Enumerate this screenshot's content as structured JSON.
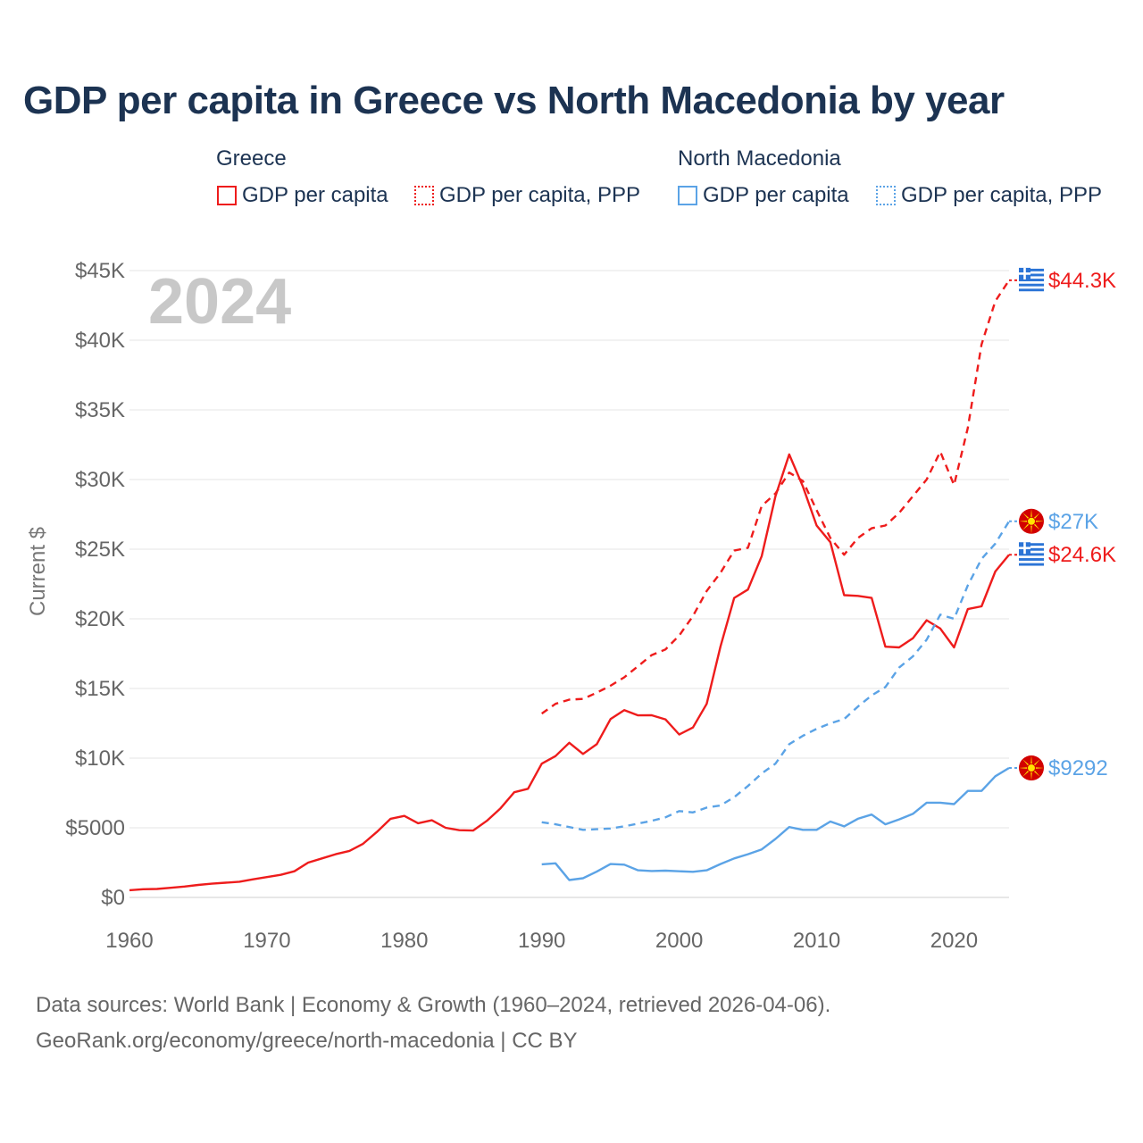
{
  "title": "GDP per capita in Greece vs North Macedonia by year",
  "legend": {
    "groups": [
      {
        "name": "Greece",
        "items": [
          "GDP per capita",
          "GDP per capita, PPP"
        ]
      },
      {
        "name": "North Macedonia",
        "items": [
          "GDP per capita",
          "GDP per capita, PPP"
        ]
      }
    ]
  },
  "source": {
    "line1": "Data sources: World Bank | Economy & Growth (1960–2024, retrieved 2026-04-06).",
    "line2": "GeoRank.org/economy/greece/north-macedonia | CC BY"
  },
  "colors": {
    "greece": "#ee1c1c",
    "north_macedonia": "#5ba3e6"
  },
  "chart_data": {
    "type": "line",
    "title": "GDP per capita in Greece vs North Macedonia by year",
    "year_label": "2024",
    "xlabel": "",
    "ylabel": "Current $",
    "xlim": [
      1960,
      2024
    ],
    "ylim": [
      0,
      45000
    ],
    "x_ticks": [
      1960,
      1970,
      1980,
      1990,
      2000,
      2010,
      2020
    ],
    "y_ticks": [
      0,
      5000,
      10000,
      15000,
      20000,
      25000,
      30000,
      35000,
      40000,
      45000
    ],
    "y_tick_labels": [
      "$0",
      "$5000",
      "$10K",
      "$15K",
      "$20K",
      "$25K",
      "$30K",
      "$35K",
      "$40K",
      "$45K"
    ],
    "grid": true,
    "series": [
      {
        "name": "Greece GDP per capita",
        "country": "Greece",
        "style": "solid",
        "color": "#ee1c1c",
        "end_label": "$24.6K",
        "x": [
          1960,
          1961,
          1962,
          1963,
          1964,
          1965,
          1966,
          1967,
          1968,
          1969,
          1970,
          1971,
          1972,
          1973,
          1974,
          1975,
          1976,
          1977,
          1978,
          1979,
          1980,
          1981,
          1982,
          1983,
          1984,
          1985,
          1986,
          1987,
          1988,
          1989,
          1990,
          1991,
          1992,
          1993,
          1994,
          1995,
          1996,
          1997,
          1998,
          1999,
          2000,
          2001,
          2002,
          2003,
          2004,
          2005,
          2006,
          2007,
          2008,
          2009,
          2010,
          2011,
          2012,
          2013,
          2014,
          2015,
          2016,
          2017,
          2018,
          2019,
          2020,
          2021,
          2022,
          2023,
          2024
        ],
        "values": [
          520,
          590,
          610,
          690,
          780,
          900,
          990,
          1060,
          1130,
          1300,
          1460,
          1620,
          1880,
          2500,
          2800,
          3100,
          3340,
          3850,
          4700,
          5650,
          5850,
          5330,
          5540,
          5000,
          4830,
          4800,
          5500,
          6400,
          7550,
          7800,
          9600,
          10150,
          11100,
          10300,
          11000,
          12800,
          13450,
          13070,
          13080,
          12780,
          11700,
          12200,
          13900,
          18000,
          21500,
          22100,
          24500,
          28800,
          31800,
          29500,
          26700,
          25500,
          21700,
          21650,
          21500,
          18000,
          17950,
          18600,
          19900,
          19300,
          17950,
          20700,
          20900,
          23400,
          24600
        ]
      },
      {
        "name": "Greece GDP per capita, PPP",
        "country": "Greece",
        "style": "dashed",
        "color": "#ee1c1c",
        "end_label": "$44.3K",
        "x": [
          1990,
          1991,
          1992,
          1993,
          1994,
          1995,
          1996,
          1997,
          1998,
          1999,
          2000,
          2001,
          2002,
          2003,
          2004,
          2005,
          2006,
          2007,
          2008,
          2009,
          2010,
          2011,
          2012,
          2013,
          2014,
          2015,
          2016,
          2017,
          2018,
          2019,
          2020,
          2021,
          2022,
          2023,
          2024
        ],
        "values": [
          13200,
          13900,
          14200,
          14250,
          14700,
          15200,
          15800,
          16600,
          17400,
          17800,
          18800,
          20200,
          22000,
          23300,
          24900,
          25100,
          28100,
          29000,
          30500,
          29900,
          27800,
          25800,
          24600,
          25800,
          26500,
          26700,
          27600,
          28800,
          30000,
          32000,
          29600,
          33700,
          39700,
          42800,
          44300
        ]
      },
      {
        "name": "North Macedonia GDP per capita",
        "country": "North Macedonia",
        "style": "solid",
        "color": "#5ba3e6",
        "end_label": "$9292",
        "x": [
          1990,
          1991,
          1992,
          1993,
          1994,
          1995,
          1996,
          1997,
          1998,
          1999,
          2000,
          2001,
          2002,
          2003,
          2004,
          2005,
          2006,
          2007,
          2008,
          2009,
          2010,
          2011,
          2012,
          2013,
          2014,
          2015,
          2016,
          2017,
          2018,
          2019,
          2020,
          2021,
          2022,
          2023,
          2024
        ],
        "values": [
          2380,
          2450,
          1250,
          1380,
          1850,
          2400,
          2350,
          1950,
          1900,
          1920,
          1880,
          1840,
          1950,
          2400,
          2800,
          3100,
          3450,
          4200,
          5050,
          4850,
          4850,
          5450,
          5100,
          5650,
          5950,
          5250,
          5600,
          6000,
          6800,
          6800,
          6700,
          7650,
          7650,
          8700,
          9292
        ]
      },
      {
        "name": "North Macedonia GDP per capita, PPP",
        "country": "North Macedonia",
        "style": "dashed",
        "color": "#5ba3e6",
        "end_label": "$27K",
        "x": [
          1990,
          1991,
          1992,
          1993,
          1994,
          1995,
          1996,
          1997,
          1998,
          1999,
          2000,
          2001,
          2002,
          2003,
          2004,
          2005,
          2006,
          2007,
          2008,
          2009,
          2010,
          2011,
          2012,
          2013,
          2014,
          2015,
          2016,
          2017,
          2018,
          2019,
          2020,
          2021,
          2022,
          2023,
          2024
        ],
        "values": [
          5400,
          5250,
          5050,
          4850,
          4900,
          4950,
          5100,
          5300,
          5500,
          5750,
          6200,
          6100,
          6450,
          6600,
          7200,
          8000,
          8900,
          9600,
          11000,
          11600,
          12100,
          12500,
          12800,
          13700,
          14500,
          15100,
          16500,
          17300,
          18500,
          20300,
          20000,
          22400,
          24300,
          25400,
          27000
        ]
      }
    ]
  }
}
